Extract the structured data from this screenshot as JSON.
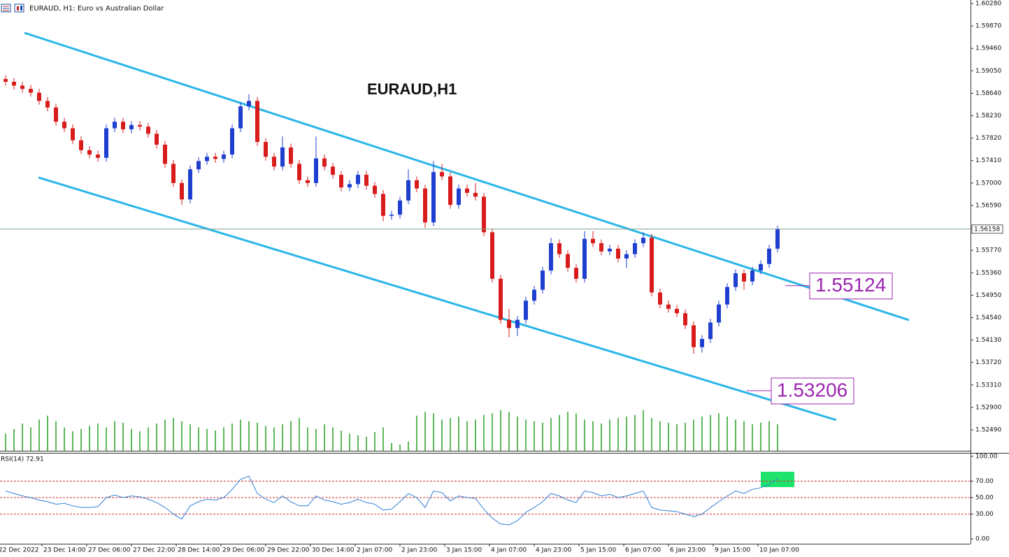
{
  "chart_data": {
    "type": "candlestick",
    "title": "EURAUD, H1:  Euro vs Australian Dollar",
    "chart_label": "EURAUD,H1",
    "up_color": "#1f3fd0",
    "down_color": "#d81b1b",
    "volume_color": "#5cb85c",
    "rsi_color": "#2f7fd6",
    "level_color": "#d32f2f",
    "candles": [
      [
        2,
        1.589,
        1.5897,
        1.5878,
        1.5885
      ],
      [
        5,
        1.5885,
        1.5892,
        1.5871,
        1.5878
      ],
      [
        8,
        1.5878,
        1.5885,
        1.5865,
        1.5872
      ],
      [
        11,
        1.5872,
        1.5879,
        1.5858,
        1.5865
      ],
      [
        14,
        1.5865,
        1.5872,
        1.5843,
        1.585
      ],
      [
        17,
        1.585,
        1.5857,
        1.5831,
        1.5838
      ],
      [
        20,
        1.5838,
        1.5845,
        1.5805,
        1.5812
      ],
      [
        23,
        1.5812,
        1.5819,
        1.5793,
        1.58
      ],
      [
        26,
        1.58,
        1.5807,
        1.5771,
        1.5778
      ],
      [
        29,
        1.5778,
        1.5785,
        1.5753,
        1.576
      ],
      [
        32,
        1.576,
        1.5767,
        1.5745,
        1.5752
      ],
      [
        35,
        1.5752,
        1.5759,
        1.5739,
        1.5746
      ],
      [
        38,
        1.5746,
        1.5807,
        1.5739,
        1.58
      ],
      [
        41,
        1.58,
        1.5819,
        1.5793,
        1.5812
      ],
      [
        44,
        1.5812,
        1.5819,
        1.5791,
        1.5798
      ],
      [
        47,
        1.5798,
        1.5813,
        1.5791,
        1.5806
      ],
      [
        50,
        1.5806,
        1.5813,
        1.5796,
        1.5803
      ],
      [
        53,
        1.5803,
        1.581,
        1.5783,
        1.579
      ],
      [
        56,
        1.579,
        1.5797,
        1.5763,
        1.577
      ],
      [
        59,
        1.577,
        1.5777,
        1.5728,
        1.5735
      ],
      [
        62,
        1.5735,
        1.5742,
        1.5693,
        1.57
      ],
      [
        65,
        1.57,
        1.5707,
        1.566,
        1.567
      ],
      [
        68,
        1.567,
        1.5732,
        1.5663,
        1.5725
      ],
      [
        71,
        1.5725,
        1.5747,
        1.5718,
        1.574
      ],
      [
        74,
        1.574,
        1.5755,
        1.5733,
        1.5748
      ],
      [
        77,
        1.5748,
        1.5755,
        1.5737,
        1.5744
      ],
      [
        80,
        1.5744,
        1.5759,
        1.5737,
        1.5752
      ],
      [
        83,
        1.5752,
        1.5807,
        1.5745,
        1.58
      ],
      [
        86,
        1.58,
        1.5847,
        1.5793,
        1.584
      ],
      [
        89,
        1.584,
        1.5862,
        1.5833,
        1.585
      ],
      [
        92,
        1.585,
        1.5857,
        1.5768,
        1.5775
      ],
      [
        95,
        1.5775,
        1.5782,
        1.5741,
        1.5748
      ],
      [
        98,
        1.5748,
        1.5755,
        1.5723,
        1.573
      ],
      [
        101,
        1.573,
        1.5785,
        1.5723,
        1.5765
      ],
      [
        104,
        1.5765,
        1.5772,
        1.5728,
        1.5735
      ],
      [
        107,
        1.5735,
        1.5742,
        1.5698,
        1.5705
      ],
      [
        110,
        1.5705,
        1.5712,
        1.5693,
        1.57
      ],
      [
        113,
        1.57,
        1.5785,
        1.5693,
        1.5745
      ],
      [
        116,
        1.5745,
        1.5752,
        1.5723,
        1.573
      ],
      [
        119,
        1.573,
        1.5737,
        1.5708,
        1.5715
      ],
      [
        122,
        1.5715,
        1.5722,
        1.5685,
        1.5692
      ],
      [
        125,
        1.5692,
        1.5705,
        1.5685,
        1.5698
      ],
      [
        128,
        1.5698,
        1.5722,
        1.5691,
        1.5715
      ],
      [
        131,
        1.5715,
        1.5722,
        1.5688,
        1.5695
      ],
      [
        134,
        1.5695,
        1.5702,
        1.5673,
        1.568
      ],
      [
        137,
        1.568,
        1.5687,
        1.563,
        1.564
      ],
      [
        140,
        1.564,
        1.5649,
        1.5633,
        1.5642
      ],
      [
        143,
        1.5642,
        1.5675,
        1.5635,
        1.5668
      ],
      [
        146,
        1.5668,
        1.5725,
        1.5661,
        1.5705
      ],
      [
        149,
        1.5705,
        1.5712,
        1.5683,
        1.569
      ],
      [
        152,
        1.569,
        1.5697,
        1.5618,
        1.5628
      ],
      [
        155,
        1.5628,
        1.574,
        1.5621,
        1.572
      ],
      [
        158,
        1.572,
        1.5735,
        1.5705,
        1.5712
      ],
      [
        161,
        1.5712,
        1.5719,
        1.5653,
        1.566
      ],
      [
        164,
        1.566,
        1.5697,
        1.5653,
        1.569
      ],
      [
        167,
        1.569,
        1.5697,
        1.5675,
        1.5682
      ],
      [
        170,
        1.5682,
        1.57,
        1.5668,
        1.5675
      ],
      [
        173,
        1.5675,
        1.5682,
        1.5603,
        1.561
      ],
      [
        176,
        1.561,
        1.5617,
        1.5518,
        1.5525
      ],
      [
        179,
        1.5525,
        1.5532,
        1.5443,
        1.545
      ],
      [
        182,
        1.545,
        1.547,
        1.5418,
        1.5435
      ],
      [
        185,
        1.5435,
        1.5457,
        1.542,
        1.545
      ],
      [
        188,
        1.545,
        1.5492,
        1.5443,
        1.5485
      ],
      [
        191,
        1.5485,
        1.5512,
        1.5478,
        1.5505
      ],
      [
        194,
        1.5505,
        1.5547,
        1.5498,
        1.554
      ],
      [
        197,
        1.554,
        1.56,
        1.5533,
        1.559
      ],
      [
        200,
        1.559,
        1.5597,
        1.5563,
        1.557
      ],
      [
        203,
        1.557,
        1.5577,
        1.5538,
        1.5545
      ],
      [
        206,
        1.5545,
        1.5552,
        1.5518,
        1.5525
      ],
      [
        209,
        1.5525,
        1.5612,
        1.5518,
        1.5598
      ],
      [
        212,
        1.5598,
        1.5612,
        1.5583,
        1.559
      ],
      [
        215,
        1.559,
        1.5597,
        1.5568,
        1.5575
      ],
      [
        218,
        1.5575,
        1.5587,
        1.5568,
        1.558
      ],
      [
        221,
        1.558,
        1.5587,
        1.5555,
        1.5562
      ],
      [
        224,
        1.5562,
        1.5577,
        1.5545,
        1.557
      ],
      [
        227,
        1.557,
        1.5597,
        1.5563,
        1.559
      ],
      [
        230,
        1.559,
        1.561,
        1.5583,
        1.56
      ],
      [
        233,
        1.56,
        1.5607,
        1.5493,
        1.55
      ],
      [
        236,
        1.55,
        1.5507,
        1.5471,
        1.5478
      ],
      [
        239,
        1.5478,
        1.5485,
        1.5463,
        1.547
      ],
      [
        242,
        1.547,
        1.5477,
        1.5455,
        1.5462
      ],
      [
        245,
        1.5462,
        1.5469,
        1.5433,
        1.544
      ],
      [
        248,
        1.544,
        1.5447,
        1.5388,
        1.54
      ],
      [
        251,
        1.54,
        1.5422,
        1.539,
        1.5415
      ],
      [
        254,
        1.5415,
        1.5452,
        1.5408,
        1.5445
      ],
      [
        257,
        1.5445,
        1.5485,
        1.5438,
        1.5478
      ],
      [
        260,
        1.5478,
        1.5517,
        1.5471,
        1.551
      ],
      [
        263,
        1.551,
        1.5542,
        1.5503,
        1.5535
      ],
      [
        266,
        1.5535,
        1.5542,
        1.5505,
        1.552
      ],
      [
        269,
        1.552,
        1.5547,
        1.5513,
        1.554
      ],
      [
        272,
        1.554,
        1.5559,
        1.5533,
        1.5552
      ],
      [
        275,
        1.5552,
        1.5587,
        1.5545,
        1.558
      ],
      [
        278,
        1.558,
        1.5622,
        1.5573,
        1.56158
      ]
    ],
    "volume": [
      22,
      28,
      35,
      30,
      40,
      45,
      38,
      30,
      25,
      28,
      32,
      35,
      30,
      38,
      36,
      28,
      25,
      30,
      35,
      40,
      42,
      38,
      34,
      30,
      28,
      26,
      30,
      35,
      40,
      38,
      36,
      32,
      30,
      34,
      38,
      42,
      30,
      28,
      34,
      30,
      26,
      22,
      20,
      18,
      24,
      30,
      10,
      8,
      12,
      45,
      50,
      48,
      40,
      42,
      44,
      38,
      40,
      46,
      48,
      52,
      50,
      44,
      40,
      38,
      36,
      42,
      46,
      50,
      48,
      40,
      38,
      35,
      40,
      42,
      44,
      46,
      52,
      42,
      38,
      36,
      34,
      36,
      40,
      44,
      46,
      48,
      44,
      40,
      38,
      34,
      36,
      38,
      34
    ],
    "rsi_label": "RSI(14) 72.91",
    "rsi": [
      58,
      55,
      52,
      50,
      47,
      45,
      42,
      43,
      40,
      38,
      38,
      39,
      50,
      53,
      50,
      52,
      51,
      48,
      44,
      38,
      30,
      24,
      40,
      45,
      48,
      47,
      50,
      60,
      72,
      76,
      55,
      48,
      44,
      52,
      45,
      40,
      40,
      52,
      47,
      45,
      42,
      44,
      48,
      44,
      42,
      35,
      36,
      45,
      55,
      50,
      38,
      58,
      56,
      46,
      52,
      50,
      49,
      36,
      25,
      18,
      17,
      22,
      32,
      38,
      45,
      55,
      52,
      47,
      44,
      58,
      56,
      52,
      54,
      50,
      52,
      55,
      58,
      38,
      35,
      34,
      33,
      30,
      27,
      30,
      38,
      45,
      52,
      58,
      55,
      60,
      62,
      66,
      72.91
    ],
    "rsi_levels": [
      70,
      50,
      30
    ],
    "xlim": [
      0,
      347
    ],
    "xticks": [
      {
        "value": -1,
        "label": "22 Dec 2022"
      },
      {
        "value": 15,
        "label": "23 Dec 14:00"
      },
      {
        "value": 31,
        "label": "27 Dec 06:00"
      },
      {
        "value": 47,
        "label": "27 Dec 22:00"
      },
      {
        "value": 63,
        "label": "28 Dec 14:00"
      },
      {
        "value": 79,
        "label": "29 Dec 06:00"
      },
      {
        "value": 95,
        "label": "29 Dec 22:00"
      },
      {
        "value": 111,
        "label": "30 Dec 14:00"
      },
      {
        "value": 127,
        "label": "2 Jan 07:00"
      },
      {
        "value": 143,
        "label": "2 Jan 23:00"
      },
      {
        "value": 159,
        "label": "3 Jan 15:00"
      },
      {
        "value": 175,
        "label": "4 Jan 07:00"
      },
      {
        "value": 191,
        "label": "4 Jan 23:00"
      },
      {
        "value": 207,
        "label": "5 Jan 15:00"
      },
      {
        "value": 223,
        "label": "6 Jan 07:00"
      },
      {
        "value": 239,
        "label": "6 Jan 23:00"
      },
      {
        "value": 255,
        "label": "9 Jan 15:00"
      },
      {
        "value": 271,
        "label": "10 Jan 07:00"
      }
    ],
    "ylim": [
      1.52107,
      1.60344
    ],
    "yticks": [
      {
        "value": 1.6028,
        "label": "1.60280"
      },
      {
        "value": 1.5987,
        "label": "1.59870"
      },
      {
        "value": 1.5946,
        "label": "1.59460"
      },
      {
        "value": 1.5905,
        "label": "1.59050"
      },
      {
        "value": 1.5864,
        "label": "1.58640"
      },
      {
        "value": 1.5823,
        "label": "1.58230"
      },
      {
        "value": 1.5782,
        "label": "1.57820"
      },
      {
        "value": 1.5741,
        "label": "1.57410"
      },
      {
        "value": 1.57,
        "label": "1.57000"
      },
      {
        "value": 1.5659,
        "label": "1.56590"
      },
      {
        "value": 1.5577,
        "label": "1.55770"
      },
      {
        "value": 1.5536,
        "label": "1.55360"
      },
      {
        "value": 1.5495,
        "label": "1.54950"
      },
      {
        "value": 1.5454,
        "label": "1.54540"
      },
      {
        "value": 1.5413,
        "label": "1.54130"
      },
      {
        "value": 1.5372,
        "label": "1.53720"
      },
      {
        "value": 1.5331,
        "label": "1.53310"
      },
      {
        "value": 1.529,
        "label": "1.52900"
      },
      {
        "value": 1.5249,
        "label": "1.52490"
      }
    ],
    "rsi_ylim": [
      -5.9,
      104.2
    ],
    "rsi_yticks": [
      {
        "value": 100,
        "label": "100.00"
      },
      {
        "value": 70,
        "label": "70.00"
      },
      {
        "value": 50,
        "label": "50.00"
      },
      {
        "value": 30,
        "label": "30.00"
      },
      {
        "value": 0,
        "label": "0.00"
      }
    ],
    "price_labels": [
      1.55124,
      1.53206
    ]
  }
}
